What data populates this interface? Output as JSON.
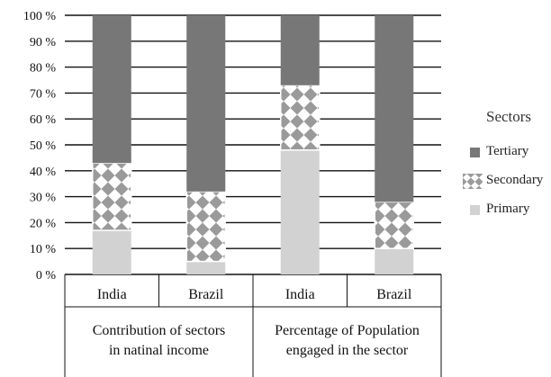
{
  "chart_data": {
    "type": "bar",
    "stacked": true,
    "y_tick_labels": [
      "0 %",
      "10 %",
      "20 %",
      "30 %",
      "40 %",
      "50 %",
      "60 %",
      "70 %",
      "80 %",
      "90 %",
      "100 %"
    ],
    "ylim": [
      0,
      100
    ],
    "categories": [
      "India",
      "Brazil",
      "India",
      "Brazil"
    ],
    "groups": [
      {
        "label": "Contribution of sectors in natinal income",
        "lines": [
          "Contribution of sectors",
          "in natinal income"
        ],
        "span": [
          0,
          1
        ]
      },
      {
        "label": "Percentage of Population engaged in the sector",
        "lines": [
          "Percentage of Population",
          "engaged in the sector"
        ],
        "span": [
          2,
          3
        ]
      }
    ],
    "series": [
      {
        "name": "Primary",
        "values": [
          17,
          5,
          48,
          10
        ]
      },
      {
        "name": "Secondary",
        "values": [
          26,
          27,
          25,
          18
        ]
      },
      {
        "name": "Tertiary",
        "values": [
          57,
          68,
          27,
          72
        ]
      }
    ],
    "grid": true,
    "legend_position": "right",
    "legend": {
      "title": "Sectors",
      "items": [
        {
          "name": "Tertiary",
          "color": "#777777"
        },
        {
          "name": "Secondary",
          "color": "#9a9a9a"
        },
        {
          "name": "Primary",
          "color": "#d2d2d2"
        }
      ]
    }
  }
}
